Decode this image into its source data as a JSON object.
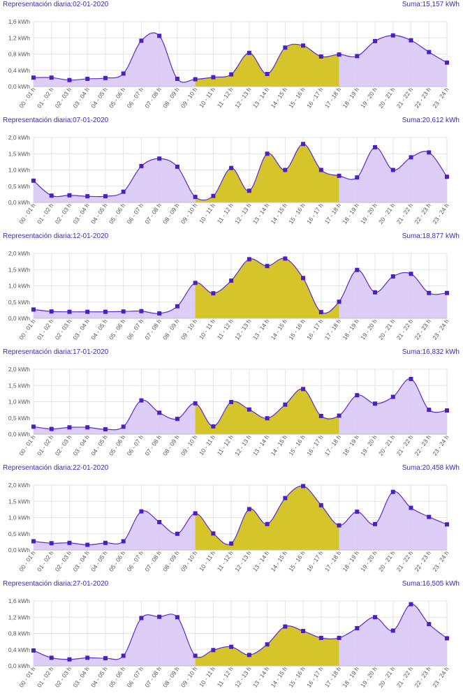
{
  "colors": {
    "title": "#3a2bb5",
    "line": "#5a2bd0",
    "marker": "#4b1fc4",
    "fill_base": "#d8c9f6",
    "fill_peak": "#d6c52a",
    "grid": "#e3e3e3",
    "axis": "#bfbfbf"
  },
  "chart_data": [
    {
      "type": "area",
      "title_prefix": "Representación diaria:",
      "date": "02-01-2020",
      "sum_prefix": "Suma:",
      "sum": "15,157 kWh",
      "categories": [
        "00 - 01 h",
        "01 - 02 h",
        "02 - 03 h",
        "03 - 04 h",
        "04 - 05 h",
        "05 - 06 h",
        "06 - 07 h",
        "07 - 08 h",
        "08 - 09 h",
        "09 - 10 h",
        "10 - 11 h",
        "11 - 12 h",
        "12 - 13 h",
        "13 - 14 h",
        "14 - 15 h",
        "15 - 16 h",
        "16 - 17 h",
        "17 - 18 h",
        "18 - 19 h",
        "19 - 20 h",
        "20 - 21 h",
        "21 - 22 h",
        "22 - 23 h",
        "23 - 24 h"
      ],
      "values": [
        0.22,
        0.22,
        0.16,
        0.19,
        0.21,
        0.32,
        1.13,
        1.25,
        0.19,
        0.18,
        0.23,
        0.3,
        0.83,
        0.31,
        0.96,
        1.01,
        0.74,
        0.79,
        0.75,
        1.12,
        1.26,
        1.14,
        0.85,
        0.59
      ],
      "highlight_range": [
        9,
        17
      ],
      "ylim": [
        0,
        1.6
      ],
      "yticks": [
        "0,0 kWh",
        "0,4 kWh",
        "0,8 kWh",
        "1,2 kWh",
        "1,6 kWh"
      ],
      "grid": true
    },
    {
      "type": "area",
      "title_prefix": "Representación diaria:",
      "date": "07-01-2020",
      "sum_prefix": "Suma:",
      "sum": "20,612 kWh",
      "categories": [
        "00 - 01 h",
        "01 - 02 h",
        "02 - 03 h",
        "03 - 04 h",
        "04 - 05 h",
        "05 - 06 h",
        "06 - 07 h",
        "07 - 08 h",
        "08 - 09 h",
        "09 - 10 h",
        "10 - 11 h",
        "11 - 12 h",
        "12 - 13 h",
        "13 - 14 h",
        "14 - 15 h",
        "15 - 16 h",
        "16 - 17 h",
        "17 - 18 h",
        "18 - 19 h",
        "19 - 20 h",
        "20 - 21 h",
        "21 - 22 h",
        "22 - 23 h",
        "23 - 24 h"
      ],
      "values": [
        0.67,
        0.21,
        0.22,
        0.19,
        0.19,
        0.33,
        1.12,
        1.35,
        1.1,
        0.17,
        0.2,
        1.06,
        0.36,
        1.5,
        1.0,
        1.8,
        1.0,
        0.82,
        0.77,
        1.7,
        1.0,
        1.39,
        1.54,
        0.79
      ],
      "highlight_range": [
        9,
        17
      ],
      "ylim": [
        0,
        2.0
      ],
      "yticks": [
        "0,0 kWh",
        "0,5 kWh",
        "1,0 kWh",
        "1,5 kWh",
        "2,0 kWh"
      ],
      "grid": true
    },
    {
      "type": "area",
      "title_prefix": "Representación diaria:",
      "date": "12-01-2020",
      "sum_prefix": "Suma:",
      "sum": "18,877 kWh",
      "categories": [
        "00 - 01 h",
        "01 - 02 h",
        "02 - 03 h",
        "03 - 04 h",
        "04 - 05 h",
        "05 - 06 h",
        "06 - 07 h",
        "07 - 08 h",
        "08 - 09 h",
        "09 - 10 h",
        "10 - 11 h",
        "11 - 12 h",
        "12 - 13 h",
        "13 - 14 h",
        "14 - 15 h",
        "15 - 16 h",
        "16 - 17 h",
        "17 - 18 h",
        "18 - 19 h",
        "19 - 20 h",
        "20 - 21 h",
        "21 - 22 h",
        "22 - 23 h",
        "23 - 24 h"
      ],
      "values": [
        0.27,
        0.21,
        0.2,
        0.2,
        0.2,
        0.21,
        0.22,
        0.15,
        0.37,
        1.09,
        0.77,
        1.16,
        1.82,
        1.61,
        1.84,
        1.24,
        0.19,
        0.51,
        1.49,
        0.8,
        1.29,
        1.37,
        0.78,
        0.78
      ],
      "highlight_range": [
        9,
        17
      ],
      "ylim": [
        0,
        2.0
      ],
      "yticks": [
        "0,0 kWh",
        "0,5 kWh",
        "1,0 kWh",
        "1,5 kWh",
        "2,0 kWh"
      ],
      "grid": true
    },
    {
      "type": "area",
      "title_prefix": "Representación diaria:",
      "date": "17-01-2020",
      "sum_prefix": "Suma:",
      "sum": "16,832 kWh",
      "categories": [
        "00 - 01 h",
        "01 - 02 h",
        "02 - 03 h",
        "03 - 04 h",
        "04 - 05 h",
        "05 - 06 h",
        "06 - 07 h",
        "07 - 08 h",
        "08 - 09 h",
        "09 - 10 h",
        "10 - 11 h",
        "11 - 12 h",
        "12 - 13 h",
        "13 - 14 h",
        "14 - 15 h",
        "15 - 16 h",
        "16 - 17 h",
        "17 - 18 h",
        "18 - 19 h",
        "19 - 20 h",
        "20 - 21 h",
        "21 - 22 h",
        "22 - 23 h",
        "23 - 24 h"
      ],
      "values": [
        0.23,
        0.16,
        0.21,
        0.21,
        0.15,
        0.23,
        1.04,
        0.66,
        0.47,
        0.95,
        0.24,
        0.99,
        0.76,
        0.49,
        0.91,
        1.39,
        0.56,
        0.57,
        1.2,
        0.94,
        1.15,
        1.7,
        0.75,
        0.73
      ],
      "highlight_range": [
        9,
        17
      ],
      "ylim": [
        0,
        2.0
      ],
      "yticks": [
        "0,0 kWh",
        "0,5 kWh",
        "1,0 kWh",
        "1,5 kWh",
        "2,0 kWh"
      ],
      "grid": true
    },
    {
      "type": "area",
      "title_prefix": "Representación diaria:",
      "date": "22-01-2020",
      "sum_prefix": "Suma:",
      "sum": "20,458 kWh",
      "categories": [
        "00 - 01 h",
        "01 - 02 h",
        "02 - 03 h",
        "03 - 04 h",
        "04 - 05 h",
        "05 - 06 h",
        "06 - 07 h",
        "07 - 08 h",
        "08 - 09 h",
        "09 - 10 h",
        "10 - 11 h",
        "11 - 12 h",
        "12 - 13 h",
        "13 - 14 h",
        "14 - 15 h",
        "15 - 16 h",
        "16 - 17 h",
        "17 - 18 h",
        "18 - 19 h",
        "19 - 20 h",
        "20 - 21 h",
        "21 - 22 h",
        "22 - 23 h",
        "23 - 24 h"
      ],
      "values": [
        0.27,
        0.21,
        0.22,
        0.16,
        0.22,
        0.27,
        1.19,
        0.86,
        0.5,
        1.13,
        0.51,
        0.2,
        1.26,
        0.8,
        1.6,
        1.97,
        1.38,
        0.76,
        1.18,
        0.8,
        1.79,
        1.3,
        1.02,
        0.79
      ],
      "highlight_range": [
        9,
        17
      ],
      "ylim": [
        0,
        2.0
      ],
      "yticks": [
        "0,0 kWh",
        "0,5 kWh",
        "1,0 kWh",
        "1,5 kWh",
        "2,0 kWh"
      ],
      "grid": true
    },
    {
      "type": "area",
      "title_prefix": "Representación diaria:",
      "date": "27-01-2020",
      "sum_prefix": "Suma:",
      "sum": "16,505 kWh",
      "categories": [
        "00 - 01 h",
        "01 - 02 h",
        "02 - 03 h",
        "03 - 04 h",
        "04 - 05 h",
        "05 - 06 h",
        "06 - 07 h",
        "07 - 08 h",
        "08 - 09 h",
        "09 - 10 h",
        "10 - 11 h",
        "11 - 12 h",
        "12 - 13 h",
        "13 - 14 h",
        "14 - 15 h",
        "15 - 16 h",
        "16 - 17 h",
        "17 - 18 h",
        "18 - 19 h",
        "19 - 20 h",
        "20 - 21 h",
        "21 - 22 h",
        "22 - 23 h",
        "23 - 24 h"
      ],
      "values": [
        0.38,
        0.2,
        0.16,
        0.2,
        0.19,
        0.25,
        1.18,
        1.21,
        1.2,
        0.25,
        0.39,
        0.47,
        0.27,
        0.53,
        0.97,
        0.86,
        0.69,
        0.69,
        0.93,
        1.2,
        0.87,
        1.52,
        1.03,
        0.68
      ],
      "highlight_range": [
        9,
        17
      ],
      "ylim": [
        0,
        1.6
      ],
      "yticks": [
        "0,0 kWh",
        "0,4 kWh",
        "0,8 kWh",
        "1,2 kWh",
        "1,6 kWh"
      ],
      "grid": true
    }
  ]
}
